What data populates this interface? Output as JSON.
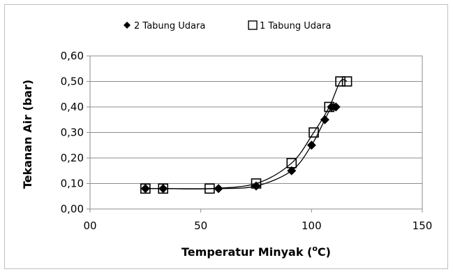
{
  "chart_data": {
    "type": "scatter",
    "title": "",
    "xlabel": "Temperatur Minyak (",
    "xlabel_sup": "o",
    "xlabel_tail": "C)",
    "ylabel": "Tekanan Air (bar)",
    "xlim": [
      0,
      150
    ],
    "ylim": [
      0,
      0.6
    ],
    "x_ticks": [
      0,
      50,
      100,
      150
    ],
    "x_tick_labels": [
      "00",
      "50",
      "100",
      "150"
    ],
    "y_ticks": [
      0,
      0.1,
      0.2,
      0.3,
      0.4,
      0.5,
      0.6
    ],
    "y_tick_labels": [
      "0,00",
      "0,10",
      "0,20",
      "0,30",
      "0,40",
      "0,50",
      "0,60"
    ],
    "grid": "horizontal",
    "legend_position": "top",
    "series": [
      {
        "name": "2 Tabung Udara",
        "marker": "diamond",
        "color": "#000000",
        "x": [
          25,
          33,
          58,
          75,
          91,
          100,
          106,
          109,
          111
        ],
        "y": [
          0.08,
          0.08,
          0.08,
          0.09,
          0.15,
          0.25,
          0.35,
          0.4,
          0.4
        ]
      },
      {
        "name": "1 Tabung Udara",
        "marker": "square-open",
        "color": "#000000",
        "x": [
          25,
          33,
          54,
          75,
          91,
          101,
          108,
          113,
          116
        ],
        "y": [
          0.08,
          0.08,
          0.08,
          0.1,
          0.18,
          0.3,
          0.4,
          0.5,
          0.5
        ]
      }
    ]
  }
}
